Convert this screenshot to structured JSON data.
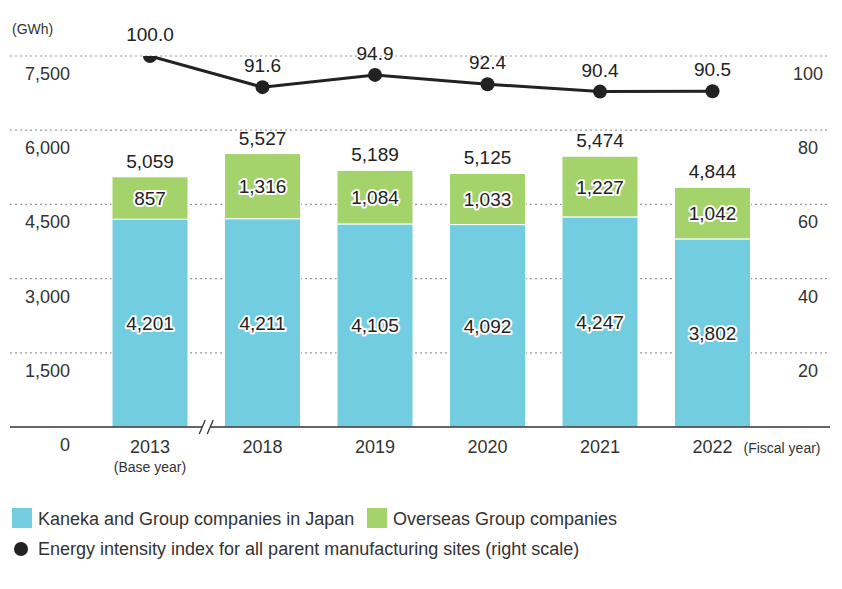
{
  "chart_data": {
    "type": "bar",
    "stacked": true,
    "data_labels": true,
    "grid": true,
    "legend": "bottom",
    "y_label": "(GWh)",
    "x_label": "(Fiscal year)",
    "categories": [
      "2013",
      "2018",
      "2019",
      "2020",
      "2021",
      "2022"
    ],
    "category_sublabels": [
      "(Base year)",
      null,
      null,
      null,
      null,
      null
    ],
    "ylim": [
      0,
      7500
    ],
    "yticks": [
      0,
      {
        "value": 1500,
        "label": "1,500"
      },
      {
        "value": 3000,
        "label": "3,000"
      },
      {
        "value": 4500,
        "label": "4,500"
      },
      {
        "value": 6000,
        "label": "6,000"
      },
      {
        "value": 7500,
        "label": "7,500"
      }
    ],
    "y2lim": [
      0,
      100
    ],
    "y2ticks": [
      20,
      40,
      60,
      80,
      100
    ],
    "series": [
      {
        "name": "Kaneka and Group companies in Japan",
        "type": "bar",
        "color": "#72cde0",
        "values": [
          4201,
          4211,
          4105,
          4092,
          4247,
          3802
        ],
        "value_labels": [
          "4,201",
          "4,211",
          "4,105",
          "4,092",
          "4,247",
          "3,802"
        ]
      },
      {
        "name": "Overseas Group companies",
        "type": "bar",
        "color": "#a4d26b",
        "values": [
          857,
          1316,
          1084,
          1033,
          1227,
          1042
        ],
        "value_labels": [
          "857",
          "1,316",
          "1,084",
          "1,033",
          "1,227",
          "1,042"
        ]
      },
      {
        "name": "Energy intensity index for all parent manufacturing sites (right scale)",
        "type": "line",
        "axis": "y2",
        "color": "#222222",
        "marker": "circle",
        "line_style": "solid",
        "values": [
          100.0,
          91.6,
          94.9,
          92.4,
          90.4,
          90.5
        ],
        "value_labels": [
          "100.0",
          "91.6",
          "94.9",
          "92.4",
          "90.4",
          "90.5"
        ]
      }
    ],
    "totals": {
      "values": [
        5059,
        5527,
        5189,
        5125,
        5474,
        4844
      ],
      "value_labels": [
        "5,059",
        "5,527",
        "5,189",
        "5,125",
        "5,474",
        "4,844"
      ]
    }
  }
}
